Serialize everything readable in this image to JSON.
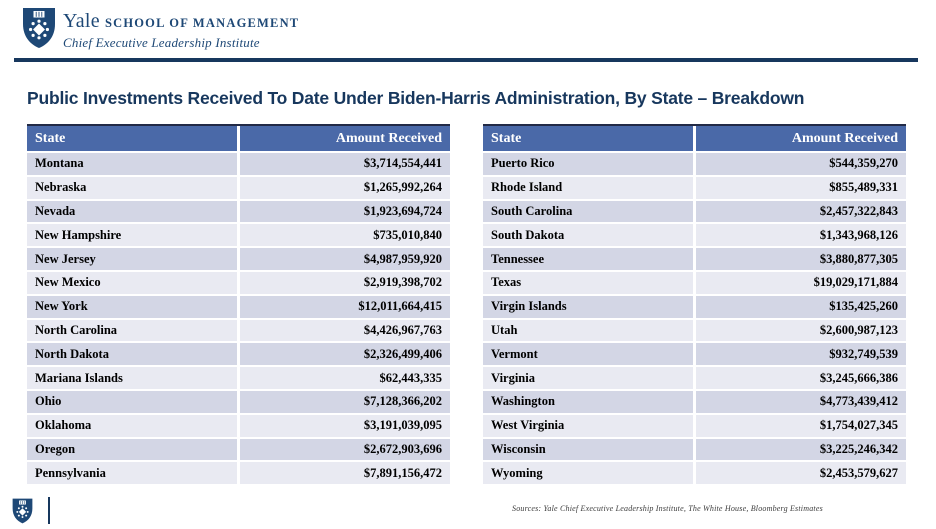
{
  "header": {
    "brand_name": "Yale",
    "brand_suffix": "School of Management",
    "brand_subtitle": "Chief Executive Leadership Institute"
  },
  "title": "Public Investments Received To Date Under Biden-Harris Administration, By State – Breakdown",
  "tables": {
    "columns": [
      "State",
      "Amount Received"
    ],
    "left": {
      "rows": [
        {
          "state": "Montana",
          "amount": "$3,714,554,441"
        },
        {
          "state": "Nebraska",
          "amount": "$1,265,992,264"
        },
        {
          "state": "Nevada",
          "amount": "$1,923,694,724"
        },
        {
          "state": "New Hampshire",
          "amount": "$735,010,840"
        },
        {
          "state": "New Jersey",
          "amount": "$4,987,959,920"
        },
        {
          "state": "New Mexico",
          "amount": "$2,919,398,702"
        },
        {
          "state": "New York",
          "amount": "$12,011,664,415"
        },
        {
          "state": "North Carolina",
          "amount": "$4,426,967,763"
        },
        {
          "state": "North Dakota",
          "amount": "$2,326,499,406"
        },
        {
          "state": "Mariana Islands",
          "amount": "$62,443,335"
        },
        {
          "state": "Ohio",
          "amount": "$7,128,366,202"
        },
        {
          "state": "Oklahoma",
          "amount": "$3,191,039,095"
        },
        {
          "state": "Oregon",
          "amount": "$2,672,903,696"
        },
        {
          "state": "Pennsylvania",
          "amount": "$7,891,156,472"
        }
      ]
    },
    "right": {
      "rows": [
        {
          "state": "Puerto Rico",
          "amount": "$544,359,270"
        },
        {
          "state": "Rhode Island",
          "amount": "$855,489,331"
        },
        {
          "state": "South Carolina",
          "amount": "$2,457,322,843"
        },
        {
          "state": "South Dakota",
          "amount": "$1,343,968,126"
        },
        {
          "state": "Tennessee",
          "amount": "$3,880,877,305"
        },
        {
          "state": "Texas",
          "amount": "$19,029,171,884"
        },
        {
          "state": "Virgin Islands",
          "amount": "$135,425,260"
        },
        {
          "state": "Utah",
          "amount": "$2,600,987,123"
        },
        {
          "state": "Vermont",
          "amount": "$932,749,539"
        },
        {
          "state": "Virginia",
          "amount": "$3,245,666,386"
        },
        {
          "state": "Washington",
          "amount": "$4,773,439,412"
        },
        {
          "state": "West Virginia",
          "amount": "$1,754,027,345"
        },
        {
          "state": "Wisconsin",
          "amount": "$3,225,246,342"
        },
        {
          "state": "Wyoming",
          "amount": "$2,453,579,627"
        }
      ]
    }
  },
  "footer": {
    "sources": "Sources: Yale Chief Executive Leadership Institute, The White House, Bloomberg Estimates"
  },
  "colors": {
    "navy": "#17375D",
    "brand_navy": "#1E4876",
    "table_header_blue": "#4A69A8",
    "row_odd": "#D3D6E5",
    "row_even": "#E9EAF2"
  }
}
